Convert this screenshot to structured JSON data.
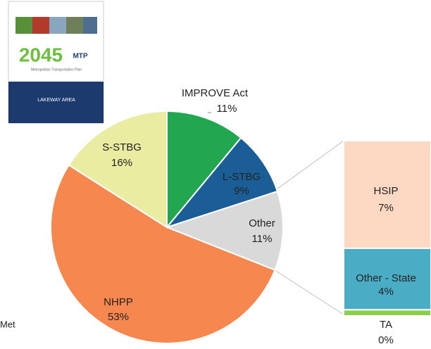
{
  "cover": {
    "year": "2045",
    "acronym": "MTP",
    "subtitle": "Metropolitan Transportation Plan",
    "region": "LAKEWAY AREA"
  },
  "footer_fragment": "Met",
  "chart_data": [
    {
      "type": "pie",
      "categories": [
        "IMPROVE Act",
        "L-STBG",
        "Other",
        "NHPP",
        "S-STBG"
      ],
      "values": [
        11,
        9,
        11,
        53,
        16
      ],
      "value_labels": [
        "11%",
        "9%",
        "11%",
        "53%",
        "16%"
      ],
      "colors": [
        "#22a64f",
        "#1b5e97",
        "#d9d9d9",
        "#f5874f",
        "#e9eca1"
      ]
    },
    {
      "type": "stacked-bar",
      "categories": [
        "HSIP",
        "Other - State",
        "TA"
      ],
      "values": [
        7,
        4,
        0.4
      ],
      "value_labels": [
        "7%",
        "4%",
        "0%"
      ],
      "colors": [
        "#fdd9c3",
        "#4bacc6",
        "#8dce4c"
      ]
    }
  ]
}
